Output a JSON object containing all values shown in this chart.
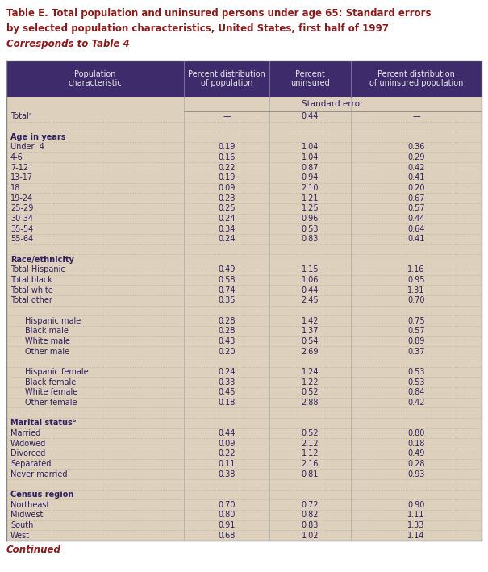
{
  "title_line1": "Table E. Total population and uninsured persons under age 65: Standard errors",
  "title_line2": "by selected population characteristics, United States, first half of 1997",
  "title_line3": "Corresponds to Table 4",
  "header_col1": "Population\ncharacteristic",
  "header_col2": "Percent distribution\nof population",
  "header_col3": "Percent\nuninsured",
  "header_col4": "Percent distribution\nof uninsured population",
  "standard_error_label": "Standard error",
  "header_bg": "#3d2b6b",
  "header_text_color": "#e8e8e8",
  "table_bg": "#ddd0bc",
  "title_color": "#8b1a1a",
  "body_text_color": "#2e2060",
  "continued_color": "#8b1a1a",
  "rows": [
    {
      "label": "Totalᵃ",
      "indent": false,
      "bold": false,
      "is_section": false,
      "col2": "—",
      "col3": "0.44",
      "col4": "—"
    },
    {
      "label": "",
      "indent": false,
      "bold": false,
      "is_section": false,
      "col2": "",
      "col3": "",
      "col4": ""
    },
    {
      "label": "Age in years",
      "indent": false,
      "bold": true,
      "is_section": true,
      "col2": "",
      "col3": "",
      "col4": ""
    },
    {
      "label": "Under  4",
      "indent": false,
      "bold": false,
      "is_section": false,
      "col2": "0.19",
      "col3": "1.04",
      "col4": "0.36"
    },
    {
      "label": "4-6",
      "indent": false,
      "bold": false,
      "is_section": false,
      "col2": "0.16",
      "col3": "1.04",
      "col4": "0.29"
    },
    {
      "label": "7-12",
      "indent": false,
      "bold": false,
      "is_section": false,
      "col2": "0.22",
      "col3": "0.87",
      "col4": "0.42"
    },
    {
      "label": "13-17",
      "indent": false,
      "bold": false,
      "is_section": false,
      "col2": "0.19",
      "col3": "0.94",
      "col4": "0.41"
    },
    {
      "label": "18",
      "indent": false,
      "bold": false,
      "is_section": false,
      "col2": "0.09",
      "col3": "2.10",
      "col4": "0.20"
    },
    {
      "label": "19-24",
      "indent": false,
      "bold": false,
      "is_section": false,
      "col2": "0.23",
      "col3": "1.21",
      "col4": "0.67"
    },
    {
      "label": "25-29",
      "indent": false,
      "bold": false,
      "is_section": false,
      "col2": "0.25",
      "col3": "1.25",
      "col4": "0.57"
    },
    {
      "label": "30-34",
      "indent": false,
      "bold": false,
      "is_section": false,
      "col2": "0.24",
      "col3": "0.96",
      "col4": "0.44"
    },
    {
      "label": "35-54",
      "indent": false,
      "bold": false,
      "is_section": false,
      "col2": "0.34",
      "col3": "0.53",
      "col4": "0.64"
    },
    {
      "label": "55-64",
      "indent": false,
      "bold": false,
      "is_section": false,
      "col2": "0.24",
      "col3": "0.83",
      "col4": "0.41"
    },
    {
      "label": "",
      "indent": false,
      "bold": false,
      "is_section": false,
      "col2": "",
      "col3": "",
      "col4": ""
    },
    {
      "label": "Race/ethnicity",
      "indent": false,
      "bold": true,
      "is_section": true,
      "col2": "",
      "col3": "",
      "col4": ""
    },
    {
      "label": "Total Hispanic",
      "indent": false,
      "bold": false,
      "is_section": false,
      "col2": "0.49",
      "col3": "1.15",
      "col4": "1.16"
    },
    {
      "label": "Total black",
      "indent": false,
      "bold": false,
      "is_section": false,
      "col2": "0.58",
      "col3": "1.06",
      "col4": "0.95"
    },
    {
      "label": "Total white",
      "indent": false,
      "bold": false,
      "is_section": false,
      "col2": "0.74",
      "col3": "0.44",
      "col4": "1.31"
    },
    {
      "label": "Total other",
      "indent": false,
      "bold": false,
      "is_section": false,
      "col2": "0.35",
      "col3": "2.45",
      "col4": "0.70"
    },
    {
      "label": "",
      "indent": false,
      "bold": false,
      "is_section": false,
      "col2": "",
      "col3": "",
      "col4": ""
    },
    {
      "label": "Hispanic male",
      "indent": true,
      "bold": false,
      "is_section": false,
      "col2": "0.28",
      "col3": "1.42",
      "col4": "0.75"
    },
    {
      "label": "Black male",
      "indent": true,
      "bold": false,
      "is_section": false,
      "col2": "0.28",
      "col3": "1.37",
      "col4": "0.57"
    },
    {
      "label": "White male",
      "indent": true,
      "bold": false,
      "is_section": false,
      "col2": "0.43",
      "col3": "0.54",
      "col4": "0.89"
    },
    {
      "label": "Other male",
      "indent": true,
      "bold": false,
      "is_section": false,
      "col2": "0.20",
      "col3": "2.69",
      "col4": "0.37"
    },
    {
      "label": "",
      "indent": false,
      "bold": false,
      "is_section": false,
      "col2": "",
      "col3": "",
      "col4": ""
    },
    {
      "label": "Hispanic female",
      "indent": true,
      "bold": false,
      "is_section": false,
      "col2": "0.24",
      "col3": "1.24",
      "col4": "0.53"
    },
    {
      "label": "Black female",
      "indent": true,
      "bold": false,
      "is_section": false,
      "col2": "0.33",
      "col3": "1.22",
      "col4": "0.53"
    },
    {
      "label": "White female",
      "indent": true,
      "bold": false,
      "is_section": false,
      "col2": "0.45",
      "col3": "0.52",
      "col4": "0.84"
    },
    {
      "label": "Other female",
      "indent": true,
      "bold": false,
      "is_section": false,
      "col2": "0.18",
      "col3": "2.88",
      "col4": "0.42"
    },
    {
      "label": "",
      "indent": false,
      "bold": false,
      "is_section": false,
      "col2": "",
      "col3": "",
      "col4": ""
    },
    {
      "label": "Marital statusᵇ",
      "indent": false,
      "bold": true,
      "is_section": true,
      "col2": "",
      "col3": "",
      "col4": ""
    },
    {
      "label": "Married",
      "indent": false,
      "bold": false,
      "is_section": false,
      "col2": "0.44",
      "col3": "0.52",
      "col4": "0.80"
    },
    {
      "label": "Widowed",
      "indent": false,
      "bold": false,
      "is_section": false,
      "col2": "0.09",
      "col3": "2.12",
      "col4": "0.18"
    },
    {
      "label": "Divorced",
      "indent": false,
      "bold": false,
      "is_section": false,
      "col2": "0.22",
      "col3": "1.12",
      "col4": "0.49"
    },
    {
      "label": "Separated",
      "indent": false,
      "bold": false,
      "is_section": false,
      "col2": "0.11",
      "col3": "2.16",
      "col4": "0.28"
    },
    {
      "label": "Never married",
      "indent": false,
      "bold": false,
      "is_section": false,
      "col2": "0.38",
      "col3": "0.81",
      "col4": "0.93"
    },
    {
      "label": "",
      "indent": false,
      "bold": false,
      "is_section": false,
      "col2": "",
      "col3": "",
      "col4": ""
    },
    {
      "label": "Census region",
      "indent": false,
      "bold": true,
      "is_section": true,
      "col2": "",
      "col3": "",
      "col4": ""
    },
    {
      "label": "Northeast",
      "indent": false,
      "bold": false,
      "is_section": false,
      "col2": "0.70",
      "col3": "0.72",
      "col4": "0.90"
    },
    {
      "label": "Midwest",
      "indent": false,
      "bold": false,
      "is_section": false,
      "col2": "0.80",
      "col3": "0.82",
      "col4": "1.11"
    },
    {
      "label": "South",
      "indent": false,
      "bold": false,
      "is_section": false,
      "col2": "0.91",
      "col3": "0.83",
      "col4": "1.33"
    },
    {
      "label": "West",
      "indent": false,
      "bold": false,
      "is_section": false,
      "col2": "0.68",
      "col3": "1.02",
      "col4": "1.14"
    }
  ],
  "figsize": [
    6.05,
    7.09
  ],
  "dpi": 100
}
